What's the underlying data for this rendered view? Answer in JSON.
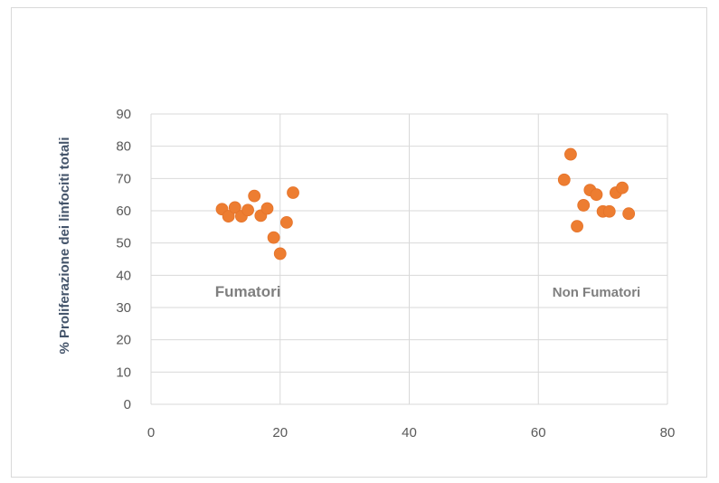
{
  "chart_data": {
    "type": "scatter",
    "title": "",
    "xlabel": "",
    "ylabel": "% Proliferazione dei linfociti totali",
    "xlim": [
      0,
      80
    ],
    "ylim": [
      0,
      90
    ],
    "x_ticks": [
      0,
      20,
      40,
      60,
      80
    ],
    "y_ticks": [
      0,
      10,
      20,
      30,
      40,
      50,
      60,
      70,
      80,
      90
    ],
    "grid": true,
    "legend": "none",
    "marker_color": "#ed7d31",
    "series": [
      {
        "points": [
          {
            "x": 11,
            "y": 60.5
          },
          {
            "x": 12,
            "y": 58.3
          },
          {
            "x": 13,
            "y": 61
          },
          {
            "x": 14,
            "y": 58.3
          },
          {
            "x": 15,
            "y": 60.2
          },
          {
            "x": 16,
            "y": 64.6
          },
          {
            "x": 17,
            "y": 58.5
          },
          {
            "x": 18,
            "y": 60.7
          },
          {
            "x": 19,
            "y": 51.7
          },
          {
            "x": 20,
            "y": 46.7
          },
          {
            "x": 21,
            "y": 56.4
          },
          {
            "x": 22,
            "y": 65.6
          },
          {
            "x": 64,
            "y": 69.6
          },
          {
            "x": 65,
            "y": 77.5
          },
          {
            "x": 66,
            "y": 55.2
          },
          {
            "x": 67,
            "y": 61.7
          },
          {
            "x": 68,
            "y": 66.4
          },
          {
            "x": 69,
            "y": 65
          },
          {
            "x": 70,
            "y": 59.8
          },
          {
            "x": 71,
            "y": 59.8
          },
          {
            "x": 72,
            "y": 65.6
          },
          {
            "x": 73,
            "y": 67.1
          },
          {
            "x": 74,
            "y": 59.1
          }
        ]
      }
    ],
    "annotations": [
      {
        "text": "Fumatori",
        "x": 15,
        "y": 35
      },
      {
        "text": "Non Fumatori",
        "x": 69,
        "y": 35
      }
    ]
  }
}
